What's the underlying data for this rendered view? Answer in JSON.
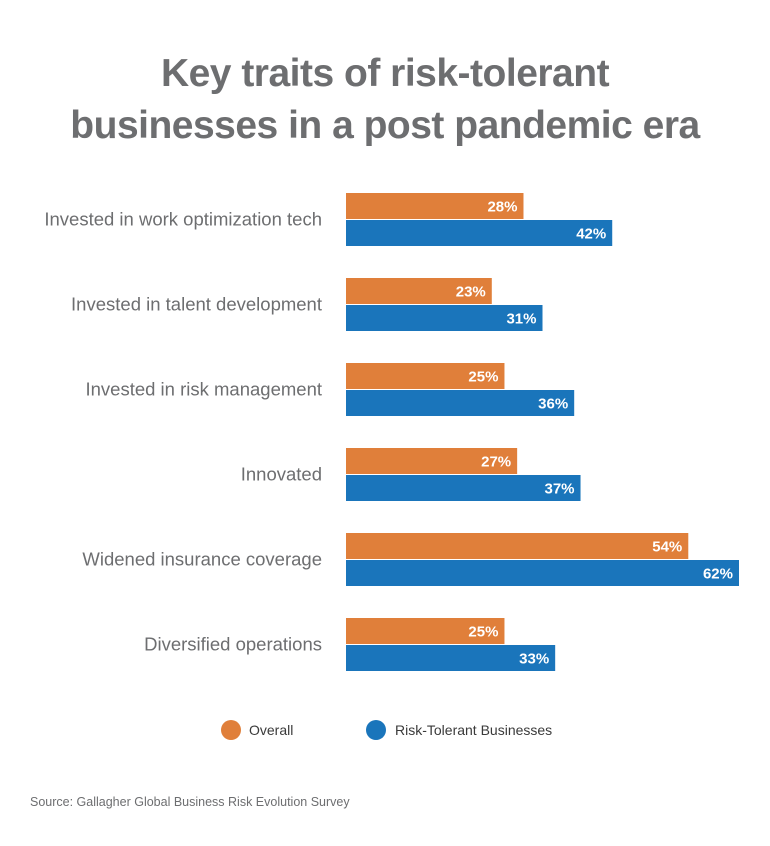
{
  "title": {
    "line1": "Key traits of risk-tolerant",
    "line2": "businesses in a post pandemic era"
  },
  "source": "Source: Gallagher Global Business Risk Evolution Survey",
  "colors": {
    "overall": "#e07f3a",
    "risk_tolerant": "#1a75bb",
    "text": "#6d6e70"
  },
  "chart_data": {
    "type": "bar",
    "orientation": "horizontal",
    "categories": [
      "Invested in work optimization tech",
      "Invested in talent development",
      "Invested in risk management",
      "Innovated",
      "Widened insurance coverage",
      "Diversified operations"
    ],
    "series": [
      {
        "name": "Overall",
        "color": "#e07f3a",
        "values": [
          28,
          23,
          25,
          27,
          54,
          25
        ]
      },
      {
        "name": "Risk-Tolerant Businesses",
        "color": "#1a75bb",
        "values": [
          42,
          31,
          36,
          37,
          62,
          33
        ]
      }
    ],
    "value_suffix": "%",
    "xlim": [
      0,
      62
    ],
    "grid": false,
    "legend_position": "bottom"
  }
}
